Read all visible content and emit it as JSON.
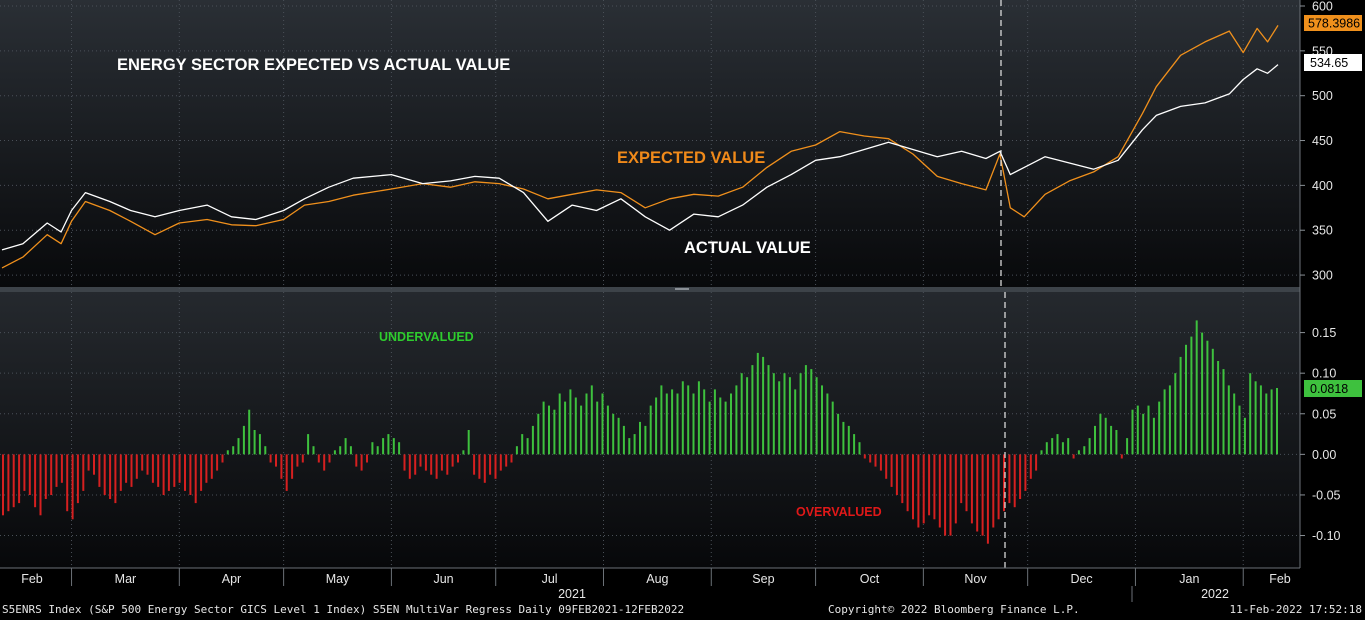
{
  "footer": {
    "left": "S5ENRS Index (S&P 500 Energy Sector GICS Level 1 Index) S5EN MultiVar Regress  Daily 09FEB2021-12FEB2022",
    "center": "Copyright© 2022 Bloomberg Finance L.P.",
    "right": "11-Feb-2022 17:52:18"
  },
  "colors": {
    "expected": "#f0901c",
    "actual": "#ffffff",
    "under": "#3ec13e",
    "over": "#d62020",
    "grid": "#4a5058",
    "under_label": "#2ecc2e",
    "over_label": "#e01818",
    "expected_label": "#f08a1a"
  },
  "chart_data": [
    {
      "type": "line",
      "title": "ENERGY SECTOR EXPECTED VS ACTUAL VALUE",
      "annotations": [
        "EXPECTED VALUE",
        "ACTUAL VALUE"
      ],
      "ylim": [
        280,
        600
      ],
      "yticks": [
        300,
        350,
        400,
        450,
        500,
        550,
        600
      ],
      "x_months": [
        "Feb",
        "Mar",
        "Apr",
        "May",
        "Jun",
        "Jul",
        "Aug",
        "Sep",
        "Oct",
        "Nov",
        "Dec",
        "Jan",
        "Feb"
      ],
      "year_labels": [
        "2021",
        "2022"
      ],
      "grid": true,
      "marker_date": "mid-Nov 2021",
      "series": [
        {
          "name": "EXPECTED VALUE",
          "last_value": "578.3986",
          "points": [
            [
              "2021-02-09",
              308
            ],
            [
              "2021-02-15",
              320
            ],
            [
              "2021-02-22",
              345
            ],
            [
              "2021-02-26",
              335
            ],
            [
              "2021-03-01",
              360
            ],
            [
              "2021-03-05",
              382
            ],
            [
              "2021-03-12",
              372
            ],
            [
              "2021-03-18",
              360
            ],
            [
              "2021-03-25",
              345
            ],
            [
              "2021-04-01",
              358
            ],
            [
              "2021-04-09",
              362
            ],
            [
              "2021-04-16",
              356
            ],
            [
              "2021-04-23",
              355
            ],
            [
              "2021-05-01",
              362
            ],
            [
              "2021-05-07",
              378
            ],
            [
              "2021-05-14",
              382
            ],
            [
              "2021-05-21",
              389
            ],
            [
              "2021-06-01",
              396
            ],
            [
              "2021-06-10",
              402
            ],
            [
              "2021-06-18",
              398
            ],
            [
              "2021-06-25",
              404
            ],
            [
              "2021-07-02",
              402
            ],
            [
              "2021-07-09",
              396
            ],
            [
              "2021-07-16",
              385
            ],
            [
              "2021-07-23",
              390
            ],
            [
              "2021-07-30",
              395
            ],
            [
              "2021-08-06",
              392
            ],
            [
              "2021-08-13",
              375
            ],
            [
              "2021-08-20",
              385
            ],
            [
              "2021-08-27",
              390
            ],
            [
              "2021-09-03",
              388
            ],
            [
              "2021-09-10",
              398
            ],
            [
              "2021-09-17",
              420
            ],
            [
              "2021-09-24",
              438
            ],
            [
              "2021-10-01",
              445
            ],
            [
              "2021-10-08",
              460
            ],
            [
              "2021-10-15",
              455
            ],
            [
              "2021-10-22",
              452
            ],
            [
              "2021-10-29",
              435
            ],
            [
              "2021-11-05",
              410
            ],
            [
              "2021-11-12",
              402
            ],
            [
              "2021-11-19",
              395
            ],
            [
              "2021-11-23",
              435
            ],
            [
              "2021-11-26",
              375
            ],
            [
              "2021-11-30",
              365
            ],
            [
              "2021-12-06",
              390
            ],
            [
              "2021-12-13",
              405
            ],
            [
              "2021-12-20",
              415
            ],
            [
              "2021-12-27",
              432
            ],
            [
              "2022-01-03",
              480
            ],
            [
              "2022-01-07",
              510
            ],
            [
              "2022-01-14",
              545
            ],
            [
              "2022-01-21",
              560
            ],
            [
              "2022-01-28",
              572
            ],
            [
              "2022-02-01",
              548
            ],
            [
              "2022-02-05",
              575
            ],
            [
              "2022-02-08",
              560
            ],
            [
              "2022-02-11",
              578.4
            ]
          ]
        },
        {
          "name": "ACTUAL VALUE",
          "last_value": "534.65",
          "points": [
            [
              "2021-02-09",
              328
            ],
            [
              "2021-02-15",
              335
            ],
            [
              "2021-02-22",
              358
            ],
            [
              "2021-02-26",
              348
            ],
            [
              "2021-03-01",
              372
            ],
            [
              "2021-03-05",
              392
            ],
            [
              "2021-03-12",
              382
            ],
            [
              "2021-03-18",
              372
            ],
            [
              "2021-03-25",
              365
            ],
            [
              "2021-04-01",
              372
            ],
            [
              "2021-04-09",
              378
            ],
            [
              "2021-04-16",
              365
            ],
            [
              "2021-04-23",
              362
            ],
            [
              "2021-05-01",
              372
            ],
            [
              "2021-05-07",
              385
            ],
            [
              "2021-05-14",
              398
            ],
            [
              "2021-05-21",
              408
            ],
            [
              "2021-06-01",
              412
            ],
            [
              "2021-06-10",
              402
            ],
            [
              "2021-06-18",
              405
            ],
            [
              "2021-06-25",
              410
            ],
            [
              "2021-07-02",
              408
            ],
            [
              "2021-07-09",
              392
            ],
            [
              "2021-07-16",
              360
            ],
            [
              "2021-07-23",
              378
            ],
            [
              "2021-07-30",
              372
            ],
            [
              "2021-08-06",
              385
            ],
            [
              "2021-08-13",
              365
            ],
            [
              "2021-08-20",
              350
            ],
            [
              "2021-08-27",
              368
            ],
            [
              "2021-09-03",
              365
            ],
            [
              "2021-09-10",
              378
            ],
            [
              "2021-09-17",
              398
            ],
            [
              "2021-09-24",
              412
            ],
            [
              "2021-10-01",
              428
            ],
            [
              "2021-10-08",
              432
            ],
            [
              "2021-10-15",
              440
            ],
            [
              "2021-10-22",
              448
            ],
            [
              "2021-10-29",
              440
            ],
            [
              "2021-11-05",
              432
            ],
            [
              "2021-11-12",
              438
            ],
            [
              "2021-11-19",
              430
            ],
            [
              "2021-11-23",
              438
            ],
            [
              "2021-11-26",
              412
            ],
            [
              "2021-11-30",
              420
            ],
            [
              "2021-12-06",
              432
            ],
            [
              "2021-12-13",
              425
            ],
            [
              "2021-12-20",
              418
            ],
            [
              "2021-12-27",
              428
            ],
            [
              "2022-01-03",
              462
            ],
            [
              "2022-01-07",
              478
            ],
            [
              "2022-01-14",
              488
            ],
            [
              "2022-01-21",
              492
            ],
            [
              "2022-01-28",
              502
            ],
            [
              "2022-02-01",
              518
            ],
            [
              "2022-02-05",
              530
            ],
            [
              "2022-02-08",
              525
            ],
            [
              "2022-02-11",
              534.65
            ]
          ]
        }
      ]
    },
    {
      "type": "bar",
      "ylim": [
        -0.14,
        0.2
      ],
      "yticks": [
        -0.1,
        -0.05,
        0.0,
        0.05,
        0.1,
        0.15
      ],
      "annotations": [
        "UNDERVALUED",
        "OVERVALUED"
      ],
      "last_value": "0.0818",
      "series": [
        {
          "name": "",
          "values": [
            -0.075,
            -0.07,
            -0.065,
            -0.06,
            -0.045,
            -0.05,
            -0.065,
            -0.075,
            -0.055,
            -0.05,
            -0.04,
            -0.035,
            -0.07,
            -0.08,
            -0.06,
            -0.045,
            -0.02,
            -0.025,
            -0.04,
            -0.05,
            -0.055,
            -0.06,
            -0.045,
            -0.035,
            -0.04,
            -0.03,
            -0.02,
            -0.025,
            -0.035,
            -0.04,
            -0.05,
            -0.045,
            -0.04,
            -0.035,
            -0.045,
            -0.05,
            -0.06,
            -0.045,
            -0.035,
            -0.03,
            -0.02,
            -0.01,
            0.005,
            0.01,
            0.02,
            0.035,
            0.055,
            0.03,
            0.025,
            0.01,
            -0.01,
            -0.015,
            -0.03,
            -0.045,
            -0.03,
            -0.015,
            -0.01,
            0.025,
            0.01,
            -0.01,
            -0.02,
            -0.01,
            0.005,
            0.01,
            0.02,
            0.01,
            -0.015,
            -0.02,
            -0.01,
            0.015,
            0.01,
            0.02,
            0.025,
            0.02,
            0.015,
            -0.02,
            -0.03,
            -0.025,
            -0.015,
            -0.02,
            -0.025,
            -0.03,
            -0.02,
            -0.025,
            -0.015,
            -0.01,
            0.005,
            0.03,
            -0.025,
            -0.03,
            -0.035,
            -0.025,
            -0.03,
            -0.02,
            -0.015,
            -0.01,
            0.01,
            0.025,
            0.02,
            0.035,
            0.05,
            0.065,
            0.06,
            0.055,
            0.075,
            0.065,
            0.08,
            0.07,
            0.06,
            0.075,
            0.085,
            0.065,
            0.075,
            0.06,
            0.05,
            0.045,
            0.035,
            0.02,
            0.025,
            0.04,
            0.035,
            0.06,
            0.07,
            0.085,
            0.075,
            0.08,
            0.075,
            0.09,
            0.085,
            0.075,
            0.09,
            0.08,
            0.065,
            0.08,
            0.07,
            0.065,
            0.075,
            0.085,
            0.1,
            0.095,
            0.11,
            0.125,
            0.12,
            0.11,
            0.1,
            0.09,
            0.1,
            0.095,
            0.08,
            0.1,
            0.11,
            0.105,
            0.095,
            0.085,
            0.075,
            0.065,
            0.05,
            0.04,
            0.035,
            0.025,
            0.015,
            -0.005,
            -0.01,
            -0.015,
            -0.02,
            -0.03,
            -0.04,
            -0.05,
            -0.06,
            -0.07,
            -0.08,
            -0.09,
            -0.085,
            -0.075,
            -0.08,
            -0.09,
            -0.1,
            -0.1,
            -0.085,
            -0.06,
            -0.07,
            -0.085,
            -0.095,
            -0.1,
            -0.11,
            -0.09,
            -0.08,
            -0.07,
            -0.06,
            -0.065,
            -0.055,
            -0.045,
            -0.03,
            -0.02,
            0.005,
            0.015,
            0.02,
            0.025,
            0.015,
            0.02,
            -0.005,
            0.005,
            0.01,
            0.02,
            0.035,
            0.05,
            0.045,
            0.035,
            0.03,
            -0.005,
            0.02,
            0.055,
            0.06,
            0.05,
            0.06,
            0.045,
            0.065,
            0.08,
            0.085,
            0.1,
            0.12,
            0.135,
            0.145,
            0.165,
            0.15,
            0.14,
            0.13,
            0.115,
            0.105,
            0.085,
            0.075,
            0.06,
            0.045,
            0.1,
            0.09,
            0.085,
            0.075,
            0.08,
            0.0818
          ]
        }
      ]
    }
  ]
}
